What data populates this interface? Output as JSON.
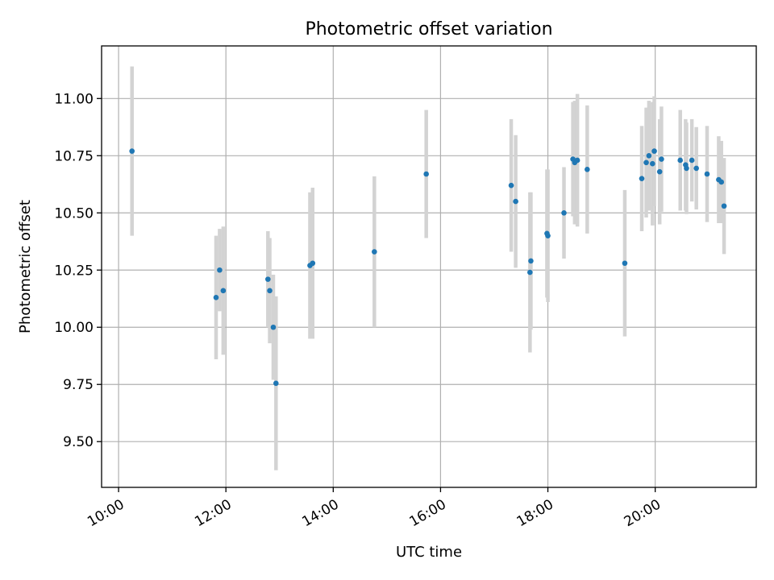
{
  "chart_data": {
    "type": "scatter",
    "title": "Photometric offset variation",
    "xlabel": "UTC time",
    "ylabel": "Photometric offset",
    "x_ticks": [
      "10:00",
      "12:00",
      "14:00",
      "16:00",
      "18:00",
      "20:00"
    ],
    "y_ticks": [
      "9.50",
      "9.75",
      "10.00",
      "10.25",
      "10.50",
      "10.75",
      "11.00"
    ],
    "xlim": [
      "09:41",
      "21:53"
    ],
    "ylim": [
      9.3,
      11.23
    ],
    "grid": true,
    "point_color": "#1f77b4",
    "errorbar_color": "#d3d3d3",
    "points": [
      {
        "x": "10:15",
        "y": 10.77,
        "err": 0.37
      },
      {
        "x": "11:49",
        "y": 10.13,
        "err": 0.27
      },
      {
        "x": "11:53",
        "y": 10.25,
        "err": 0.18
      },
      {
        "x": "11:57",
        "y": 10.16,
        "err": 0.28
      },
      {
        "x": "12:47",
        "y": 10.21,
        "err": 0.21
      },
      {
        "x": "12:49",
        "y": 10.16,
        "err": 0.23
      },
      {
        "x": "12:53",
        "y": 10.0,
        "err": 0.23
      },
      {
        "x": "12:56",
        "y": 9.755,
        "err": 0.38
      },
      {
        "x": "13:34",
        "y": 10.27,
        "err": 0.32
      },
      {
        "x": "13:37",
        "y": 10.28,
        "err": 0.33
      },
      {
        "x": "14:46",
        "y": 10.33,
        "err": 0.33
      },
      {
        "x": "15:44",
        "y": 10.67,
        "err": 0.28
      },
      {
        "x": "17:19",
        "y": 10.62,
        "err": 0.29
      },
      {
        "x": "17:24",
        "y": 10.55,
        "err": 0.29
      },
      {
        "x": "17:40",
        "y": 10.24,
        "err": 0.35
      },
      {
        "x": "17:41",
        "y": 10.29,
        "err": 0.3
      },
      {
        "x": "17:59",
        "y": 10.41,
        "err": 0.28
      },
      {
        "x": "18:00",
        "y": 10.4,
        "err": 0.29
      },
      {
        "x": "18:18",
        "y": 10.5,
        "err": 0.2
      },
      {
        "x": "18:28",
        "y": 10.735,
        "err": 0.25
      },
      {
        "x": "18:30",
        "y": 10.72,
        "err": 0.27
      },
      {
        "x": "18:33",
        "y": 10.73,
        "err": 0.29
      },
      {
        "x": "18:44",
        "y": 10.69,
        "err": 0.28
      },
      {
        "x": "19:26",
        "y": 10.28,
        "err": 0.32
      },
      {
        "x": "19:45",
        "y": 10.65,
        "err": 0.23
      },
      {
        "x": "19:50",
        "y": 10.72,
        "err": 0.24
      },
      {
        "x": "19:53",
        "y": 10.75,
        "err": 0.24
      },
      {
        "x": "19:57",
        "y": 10.715,
        "err": 0.27
      },
      {
        "x": "19:59",
        "y": 10.77,
        "err": 0.24
      },
      {
        "x": "20:05",
        "y": 10.68,
        "err": 0.23
      },
      {
        "x": "20:07",
        "y": 10.735,
        "err": 0.23
      },
      {
        "x": "20:28",
        "y": 10.73,
        "err": 0.22
      },
      {
        "x": "20:34",
        "y": 10.71,
        "err": 0.2
      },
      {
        "x": "20:35",
        "y": 10.695,
        "err": 0.2
      },
      {
        "x": "20:41",
        "y": 10.73,
        "err": 0.18
      },
      {
        "x": "20:46",
        "y": 10.695,
        "err": 0.18
      },
      {
        "x": "20:58",
        "y": 10.67,
        "err": 0.21
      },
      {
        "x": "21:11",
        "y": 10.645,
        "err": 0.19
      },
      {
        "x": "21:14",
        "y": 10.635,
        "err": 0.18
      },
      {
        "x": "21:17",
        "y": 10.53,
        "err": 0.21
      }
    ]
  }
}
